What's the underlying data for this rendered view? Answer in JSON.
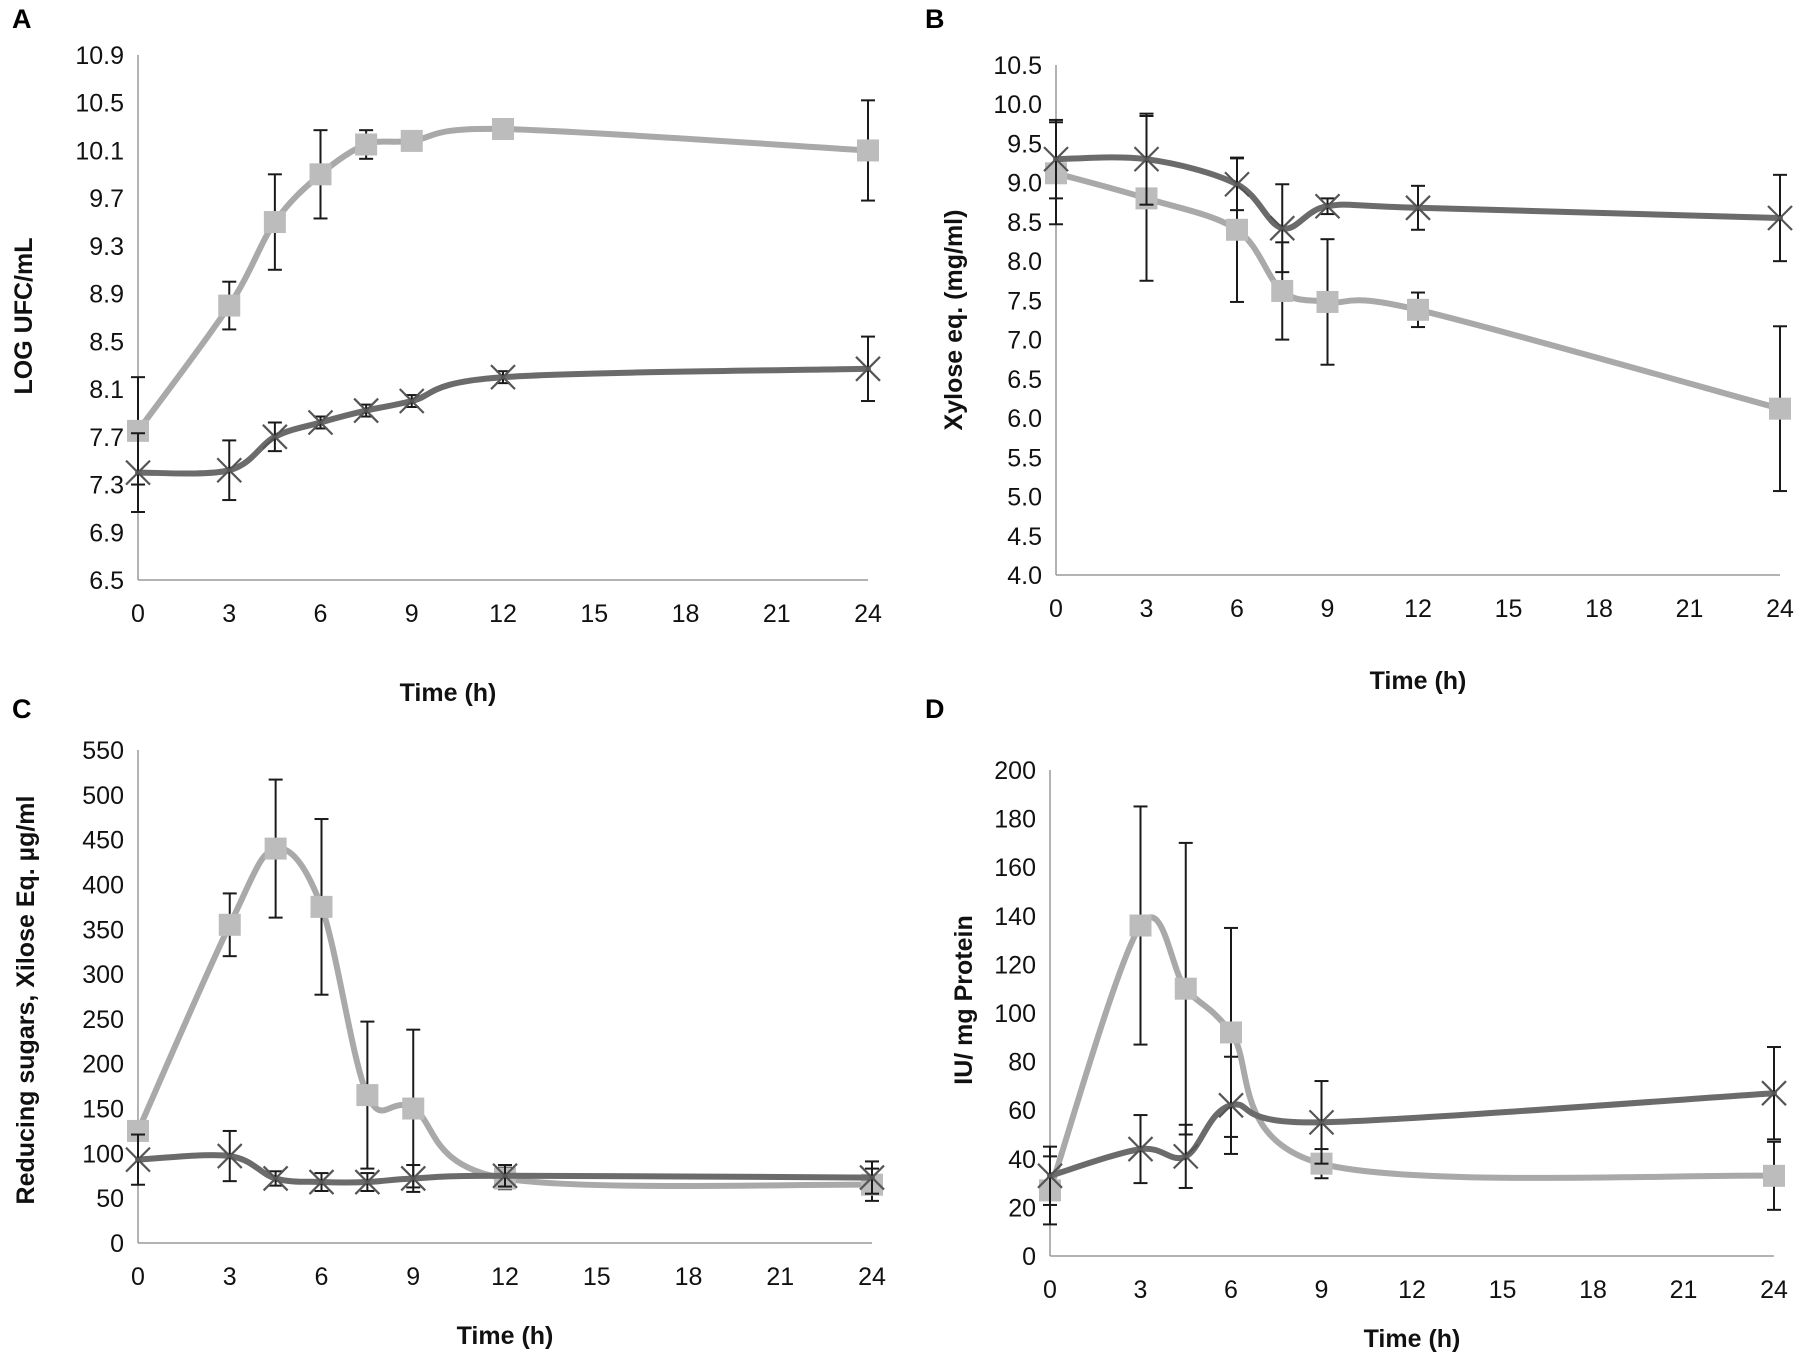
{
  "figure": {
    "colors": {
      "square_series": "#a9a9a9",
      "square_marker": "#bcbcbc",
      "x_series": "#6b6b6b",
      "x_marker": "#555555",
      "error_bar": "#1a1a1a",
      "axis": "#9a9a9a"
    }
  },
  "chart_data": [
    {
      "panel": "A",
      "type": "line",
      "title": "",
      "xlabel": "Time (h)",
      "ylabel": "LOG UFC/mL",
      "xlim": [
        0,
        24
      ],
      "ylim": [
        6.5,
        10.9
      ],
      "xticks": [
        0,
        3,
        6,
        9,
        12,
        15,
        18,
        21,
        24
      ],
      "yticks": [
        "6.5",
        "6.9",
        "7.3",
        "7.7",
        "8.1",
        "8.5",
        "8.9",
        "9.3",
        "9.7",
        "10.1",
        "10.5",
        "10.9"
      ],
      "grid": false,
      "legend": "none",
      "series": [
        {
          "name": "square",
          "marker": "square",
          "x": [
            0,
            3,
            4.5,
            6,
            7.5,
            9,
            12,
            24
          ],
          "y": [
            7.75,
            8.8,
            9.5,
            9.9,
            10.15,
            10.18,
            10.28,
            10.1
          ],
          "err": [
            0.45,
            0.2,
            0.4,
            0.37,
            0.12,
            0.03,
            0.05,
            0.42
          ]
        },
        {
          "name": "x",
          "marker": "x",
          "x": [
            0,
            3,
            4.5,
            6,
            7.5,
            9,
            12,
            24
          ],
          "y": [
            7.4,
            7.42,
            7.7,
            7.82,
            7.92,
            8.0,
            8.2,
            8.27
          ],
          "err": [
            0.33,
            0.25,
            0.12,
            0.05,
            0.05,
            0.05,
            0.05,
            0.27
          ]
        }
      ]
    },
    {
      "panel": "B",
      "type": "line",
      "title": "",
      "xlabel": "Time (h)",
      "ylabel": "Xylose eq.  (mg/ml)",
      "xlim": [
        0,
        24
      ],
      "ylim": [
        4.0,
        10.5
      ],
      "xticks": [
        0,
        3,
        6,
        9,
        12,
        15,
        18,
        21,
        24
      ],
      "yticks": [
        "4.0",
        "4.5",
        "5.0",
        "5.5",
        "6.0",
        "6.5",
        "7.0",
        "7.5",
        "8.0",
        "8.5",
        "9.0",
        "9.5",
        "10.0",
        "10.5"
      ],
      "grid": false,
      "legend": "none",
      "series": [
        {
          "name": "square",
          "marker": "square",
          "x": [
            0,
            3,
            6,
            7.5,
            9,
            12,
            24
          ],
          "y": [
            9.12,
            8.8,
            8.4,
            7.62,
            7.48,
            7.38,
            6.12
          ],
          "err": [
            0.65,
            1.05,
            0.92,
            0.62,
            0.8,
            0.22,
            1.05
          ]
        },
        {
          "name": "x",
          "marker": "x",
          "x": [
            0,
            3,
            6,
            7.5,
            9,
            12,
            24
          ],
          "y": [
            9.3,
            9.3,
            8.98,
            8.42,
            8.7,
            8.68,
            8.55
          ],
          "err": [
            0.5,
            0.58,
            0.33,
            0.56,
            0.1,
            0.28,
            0.55
          ]
        }
      ]
    },
    {
      "panel": "C",
      "type": "line",
      "title": "",
      "xlabel": "Time (h)",
      "ylabel": "Reducing sugars, Xilose Eq.  µg/ml",
      "xlim": [
        0,
        24
      ],
      "ylim": [
        0,
        550
      ],
      "xticks": [
        0,
        3,
        6,
        9,
        12,
        15,
        18,
        21,
        24
      ],
      "yticks": [
        "0",
        "50",
        "100",
        "150",
        "200",
        "250",
        "300",
        "350",
        "400",
        "450",
        "500",
        "550"
      ],
      "grid": false,
      "legend": "none",
      "series": [
        {
          "name": "square",
          "marker": "square",
          "x": [
            0,
            3,
            4.5,
            6,
            7.5,
            9,
            12,
            24
          ],
          "y": [
            125,
            355,
            440,
            375,
            165,
            150,
            72,
            65
          ],
          "err": [
            0,
            35,
            77,
            98,
            82,
            88,
            12,
            18
          ]
        },
        {
          "name": "x",
          "marker": "x",
          "x": [
            0,
            3,
            4.5,
            6,
            7.5,
            9,
            12,
            24
          ],
          "y": [
            93,
            97,
            72,
            68,
            68,
            72,
            75,
            73
          ],
          "err": [
            28,
            28,
            8,
            10,
            10,
            15,
            12,
            18
          ]
        }
      ]
    },
    {
      "panel": "D",
      "type": "line",
      "title": "",
      "xlabel": "Time (h)",
      "ylabel": "IU/ mg Protein",
      "xlim": [
        0,
        24
      ],
      "ylim": [
        0,
        200
      ],
      "xticks": [
        0,
        3,
        6,
        9,
        12,
        15,
        18,
        21,
        24
      ],
      "yticks": [
        "0",
        "20",
        "40",
        "60",
        "80",
        "100",
        "120",
        "140",
        "160",
        "180",
        "200"
      ],
      "grid": false,
      "legend": "none",
      "series": [
        {
          "name": "square",
          "marker": "square",
          "x": [
            0,
            3,
            4.5,
            6,
            9,
            24
          ],
          "y": [
            27,
            136,
            110,
            92,
            38,
            33
          ],
          "err": [
            14,
            49,
            60,
            43,
            6,
            14
          ]
        },
        {
          "name": "x",
          "marker": "x",
          "x": [
            0,
            3,
            4.5,
            6,
            9,
            24
          ],
          "y": [
            33,
            44,
            41,
            62,
            55,
            67
          ],
          "err": [
            12,
            14,
            13,
            20,
            17,
            19
          ]
        }
      ]
    }
  ]
}
